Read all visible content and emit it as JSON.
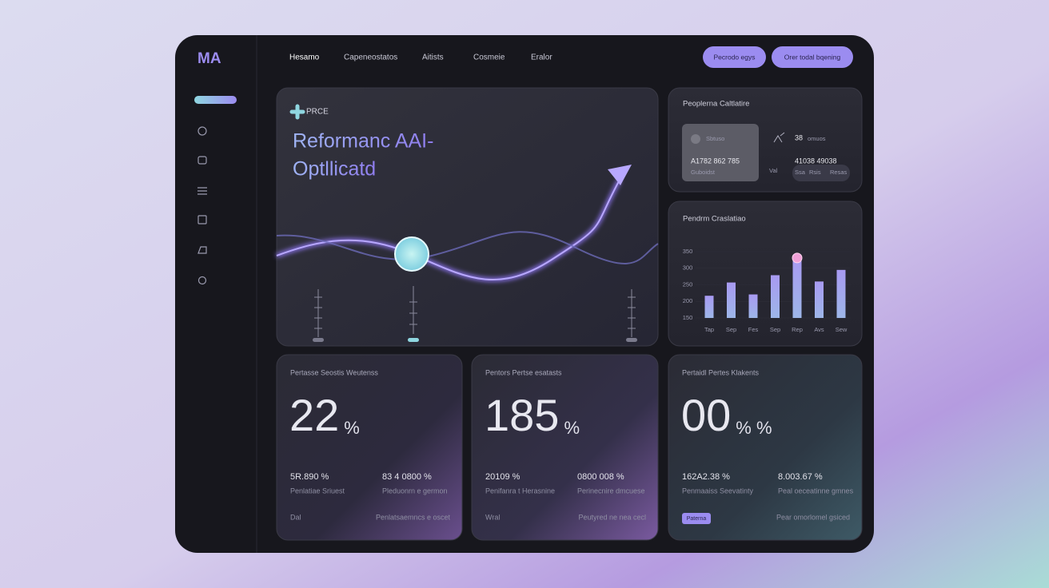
{
  "logo": "MA",
  "nav": [
    "Hesamo",
    "Capeneostatos",
    "Aitists",
    "Cosmeie",
    "Eralor"
  ],
  "buttons": [
    "Pecrodo egys",
    "Orer todal bqening"
  ],
  "hero": {
    "tag": "PRCE",
    "title_lines": [
      "Reformanc AAI-",
      "Optllicatd"
    ]
  },
  "profile_card": {
    "title": "Peoplerna Caltlatire",
    "inner_label": "Sbtuso",
    "inner_number": "A1782 862 785",
    "inner_caption": "Guboidst",
    "count": "38",
    "count_caption": "omuos",
    "right_number": "41038 49038",
    "side_label": "Val",
    "chips": [
      "Ssa",
      "Rsis",
      "Resas"
    ]
  },
  "bar_chart": {
    "title": "Pendrm Craslatiao",
    "categories": [
      "Tap",
      "Sep",
      "Fes",
      "Sep",
      "Rep",
      "Avs",
      "Sew"
    ],
    "values": [
      217,
      257,
      221,
      279,
      331,
      260,
      295
    ],
    "ylim": [
      150,
      350
    ],
    "yticks": [
      150,
      200,
      250,
      300,
      350
    ]
  },
  "stat_cards": [
    {
      "title": "Pertasse Seostis Weutenss",
      "value": "22",
      "unit": "%",
      "left_value": "5R.890 %",
      "right_value": "83 4 0800 %",
      "left_label": "Penlatiae Sriuest",
      "right_label": "Pleduonrn e germon",
      "footer_left": "Dal",
      "footer_right": "Penlatsaemncs e oscet"
    },
    {
      "title": "Pentors Pertse esatasts",
      "value": "185",
      "unit": "%",
      "left_value": "20109 %",
      "right_value": "0800 008 %",
      "left_label": "Penifanra t Herasnine",
      "right_label": "Perinecnire dmcuese",
      "footer_left": "Wral",
      "footer_right": "Peutyred ne nea cecl"
    },
    {
      "title": "Pertaidl Pertes Klakents",
      "value": "00",
      "unit": "% %",
      "left_value": "162A2.38 %",
      "right_value": "8.003.67 %",
      "left_label": "Penmaaiss Seevatinty",
      "right_label": "Peal oeceatinne gmnes",
      "footer_left": "Paterna",
      "footer_right": "Pear omorlomel gsiced"
    }
  ]
}
